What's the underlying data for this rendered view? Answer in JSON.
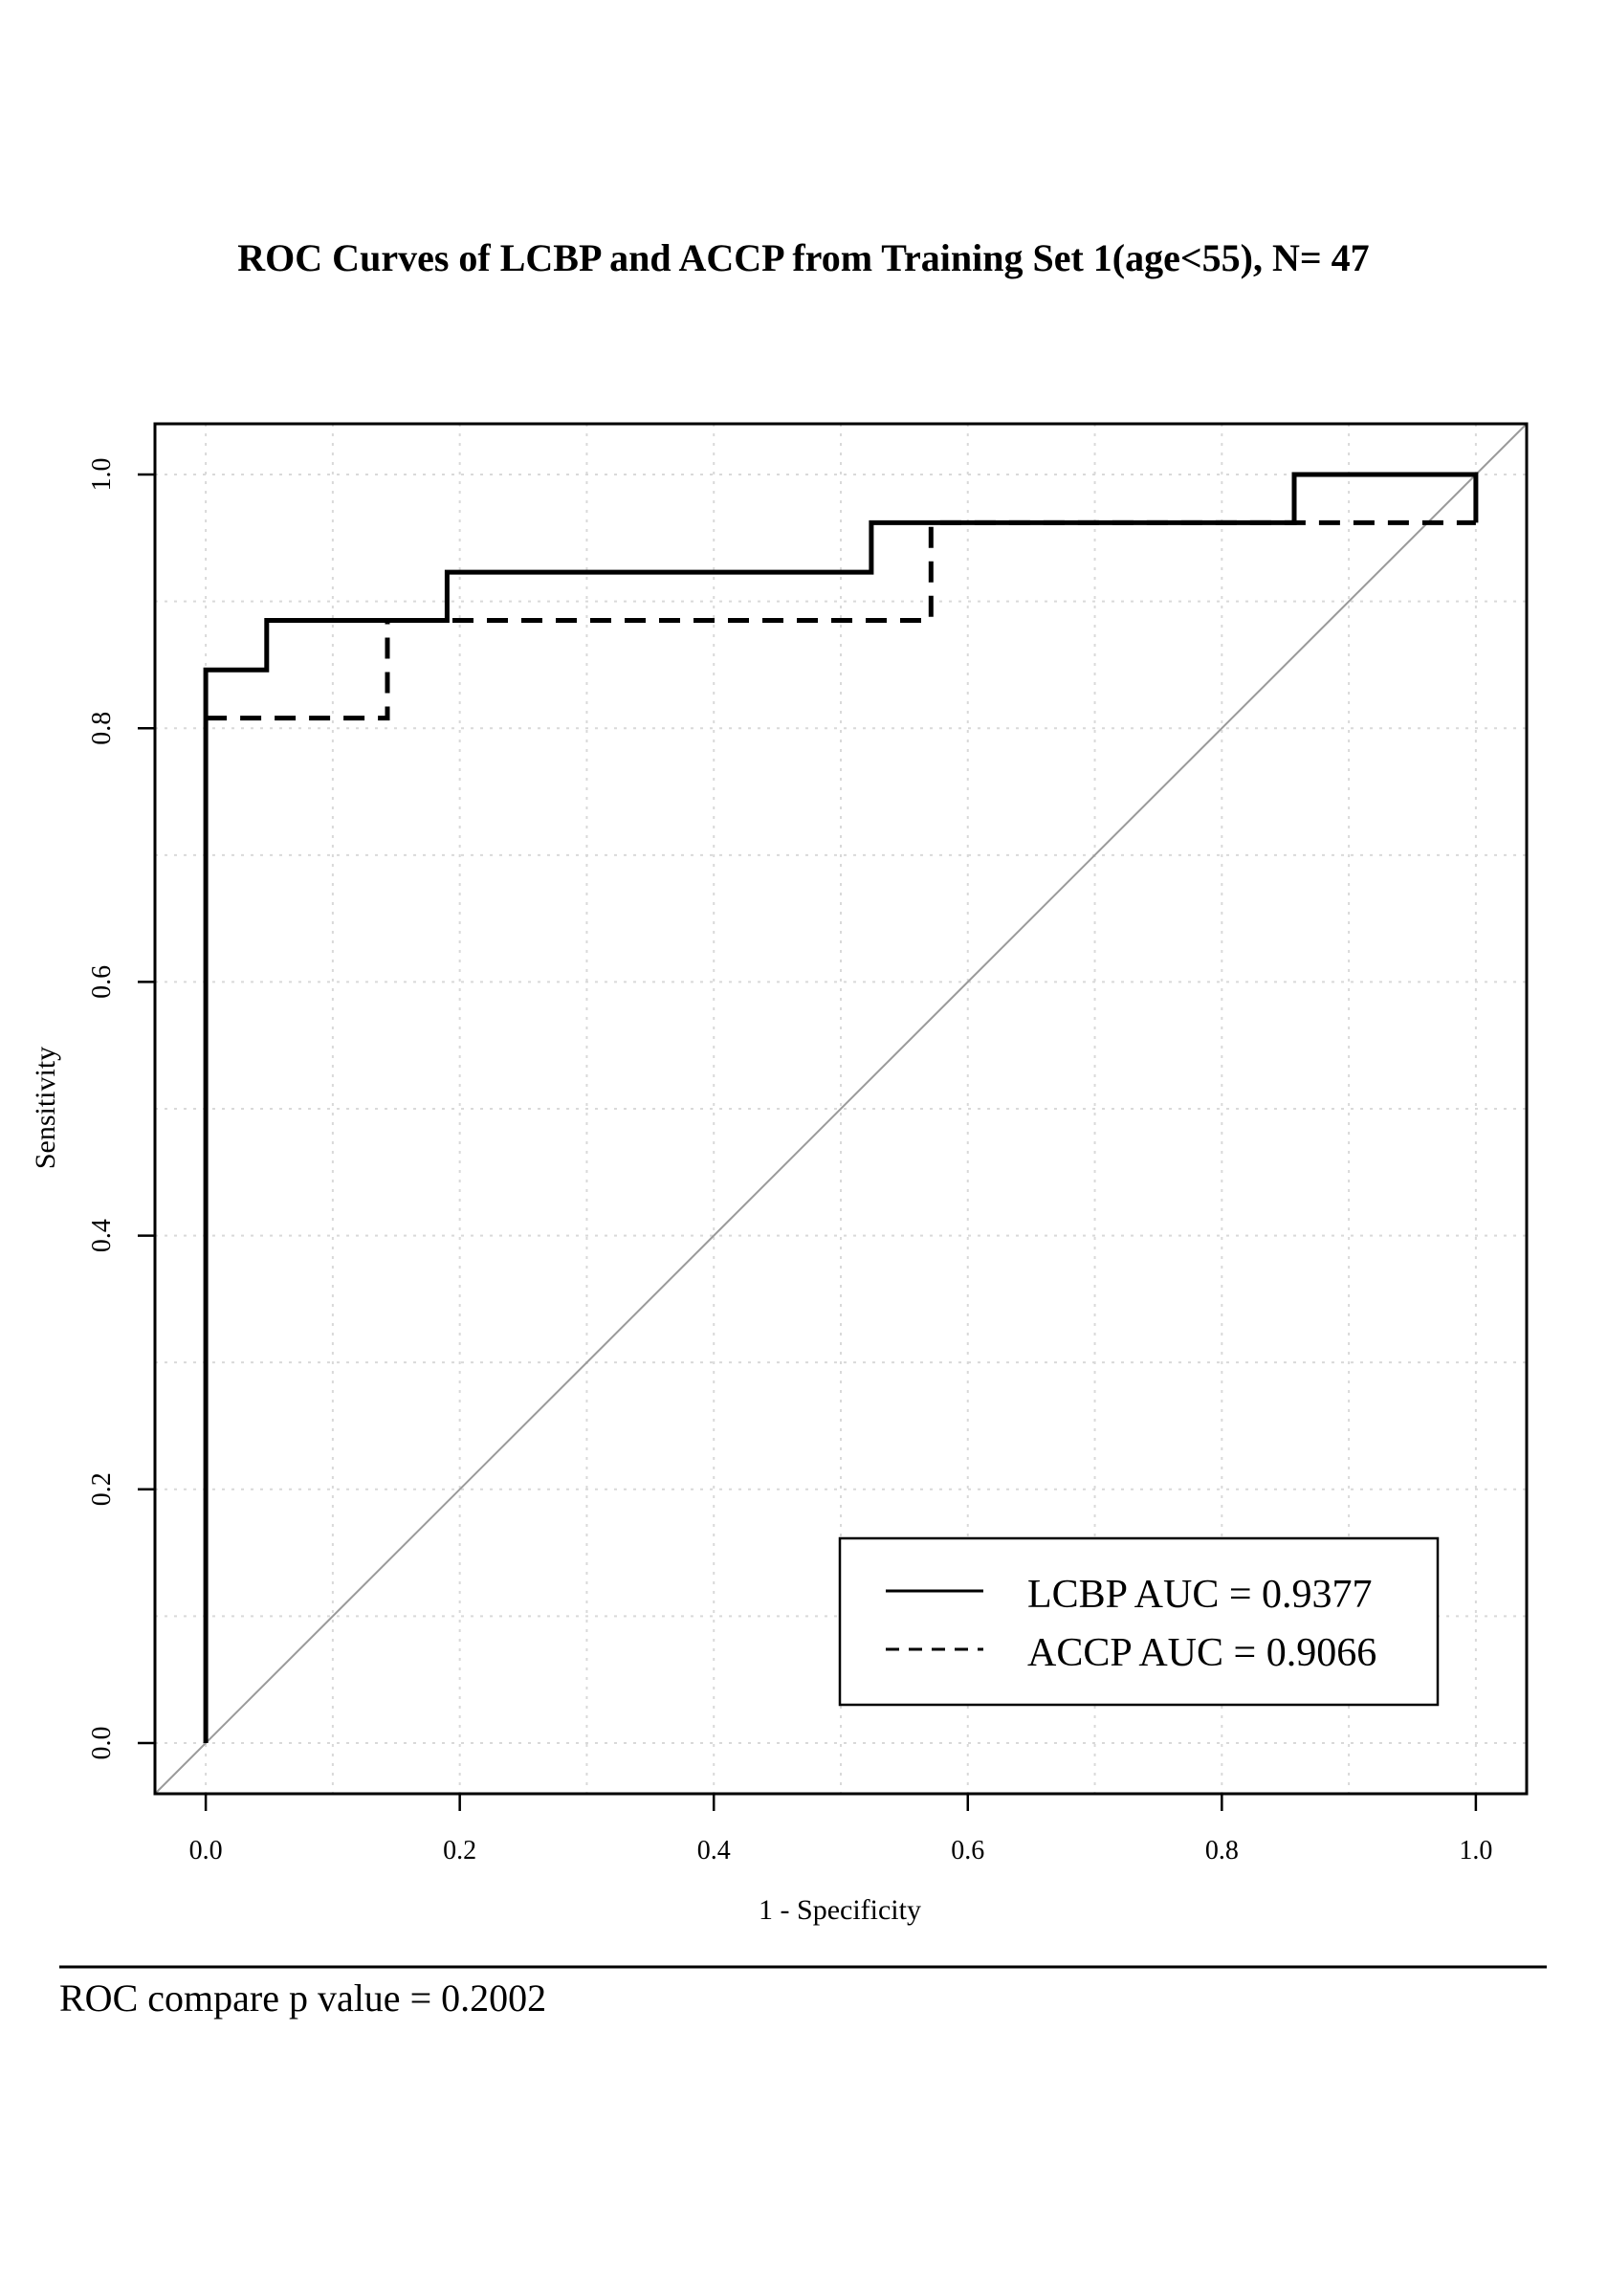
{
  "chart_data": {
    "type": "line",
    "title": "ROC Curves of LCBP and ACCP from Training Set 1(age<55), N= 47",
    "xlabel": "1 - Specificity",
    "ylabel": "Sensitivity",
    "xlim": [
      -0.04,
      1.04
    ],
    "ylim": [
      -0.04,
      1.04
    ],
    "x_ticks": [
      "0.0",
      "0.2",
      "0.4",
      "0.6",
      "0.8",
      "1.0"
    ],
    "y_ticks": [
      "0.0",
      "0.2",
      "0.4",
      "0.6",
      "0.8",
      "1.0"
    ],
    "grid": true,
    "legend_position": "bottom-right",
    "reference_line": {
      "from": [
        0,
        0
      ],
      "to": [
        1,
        1
      ],
      "color": "#9a9a9a"
    },
    "series": [
      {
        "name": "LCBP AUC = 0.9377",
        "line_style": "solid",
        "color": "#000000",
        "points": [
          [
            0,
            0
          ],
          [
            0,
            0.846
          ],
          [
            0.048,
            0.846
          ],
          [
            0.048,
            0.885
          ],
          [
            0.19,
            0.885
          ],
          [
            0.19,
            0.923
          ],
          [
            0.524,
            0.923
          ],
          [
            0.524,
            0.962
          ],
          [
            0.857,
            0.962
          ],
          [
            0.857,
            1.0
          ],
          [
            1.0,
            1.0
          ],
          [
            1.0,
            0.962
          ]
        ]
      },
      {
        "name": "ACCP AUC = 0.9066",
        "line_style": "dashed",
        "color": "#000000",
        "points": [
          [
            0.0,
            0.808
          ],
          [
            0.143,
            0.808
          ],
          [
            0.143,
            0.885
          ],
          [
            0.571,
            0.885
          ],
          [
            0.571,
            0.962
          ],
          [
            1.0,
            0.962
          ]
        ]
      }
    ]
  },
  "footer": {
    "text": "ROC compare p value = 0.2002"
  }
}
